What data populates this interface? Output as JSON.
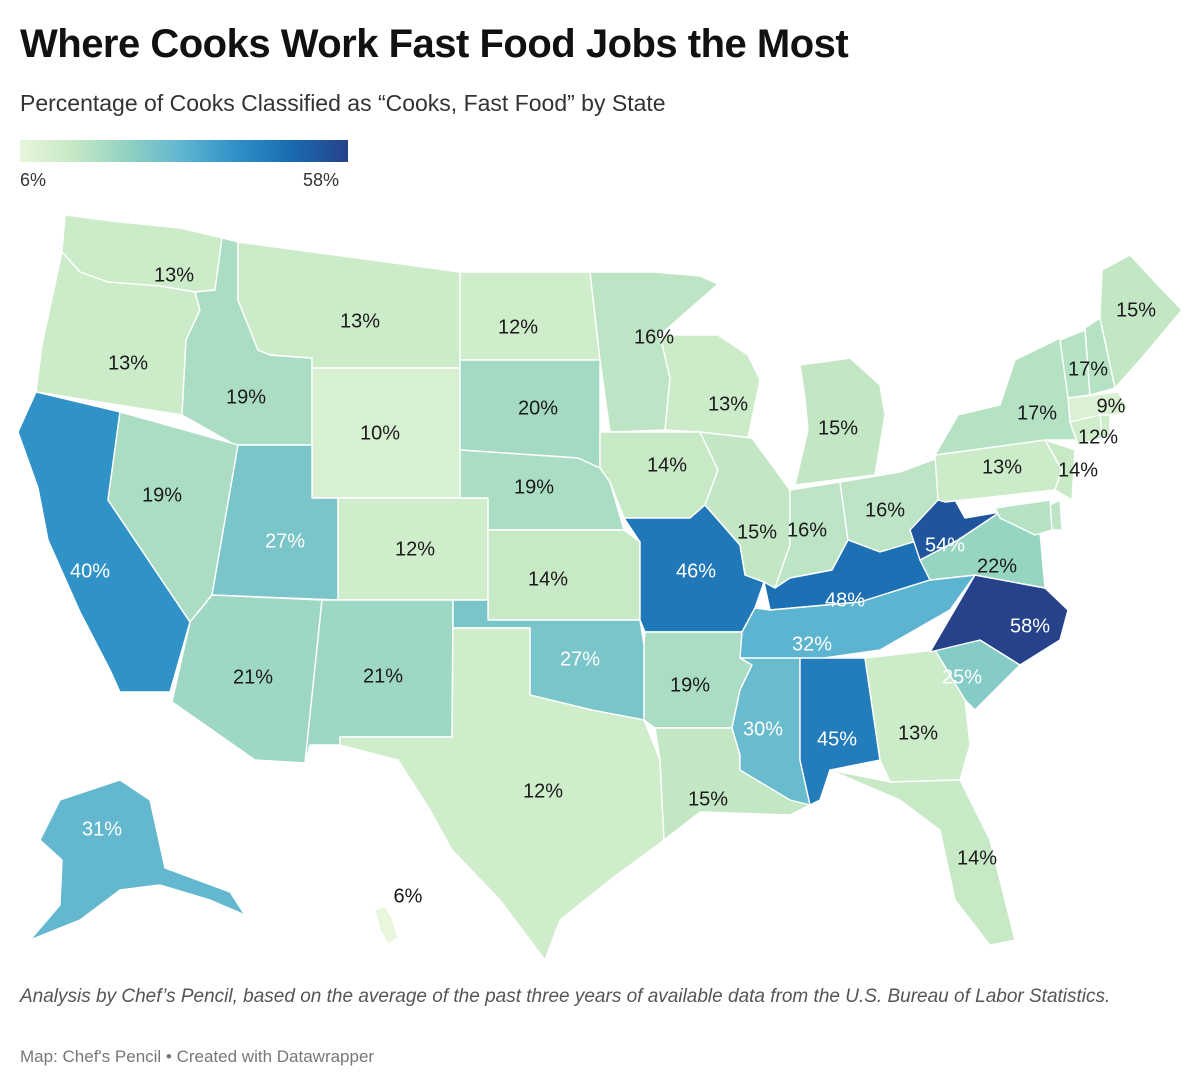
{
  "title": "Where Cooks Work Fast Food Jobs the Most",
  "subtitle": "Percentage of Cooks Classified as “Cooks, Fast Food” by State",
  "legend": {
    "min_label": "6%",
    "max_label": "58%",
    "min": 6,
    "max": 58,
    "colors": [
      "#e7f6dc",
      "#c5e8c4",
      "#8fd1c3",
      "#5db4d1",
      "#2d8fc7",
      "#1a6aaf",
      "#26428b"
    ]
  },
  "notes": "Analysis by Chef’s Pencil, based on the average of the past three years of available data from the U.S. Bureau of Labor Statistics.",
  "credit": "Map: Chef's Pencil • Created with Datawrapper",
  "map_data": {
    "type": "choropleth",
    "unit": "%",
    "states": [
      {
        "id": "WA",
        "value": 13,
        "label": "13%"
      },
      {
        "id": "OR",
        "value": 13,
        "label": "13%"
      },
      {
        "id": "CA",
        "value": 40,
        "label": "40%"
      },
      {
        "id": "ID",
        "value": 19,
        "label": "19%"
      },
      {
        "id": "NV",
        "value": 19,
        "label": "19%"
      },
      {
        "id": "MT",
        "value": 13,
        "label": "13%"
      },
      {
        "id": "WY",
        "value": 10,
        "label": "10%"
      },
      {
        "id": "UT",
        "value": 27,
        "label": "27%"
      },
      {
        "id": "AZ",
        "value": 21,
        "label": "21%"
      },
      {
        "id": "CO",
        "value": 12,
        "label": "12%"
      },
      {
        "id": "NM",
        "value": 21,
        "label": "21%"
      },
      {
        "id": "ND",
        "value": 12,
        "label": "12%"
      },
      {
        "id": "SD",
        "value": 20,
        "label": "20%"
      },
      {
        "id": "NE",
        "value": 19,
        "label": "19%"
      },
      {
        "id": "KS",
        "value": 14,
        "label": "14%"
      },
      {
        "id": "OK",
        "value": 27,
        "label": "27%"
      },
      {
        "id": "TX",
        "value": 12,
        "label": "12%"
      },
      {
        "id": "MN",
        "value": 16,
        "label": "16%"
      },
      {
        "id": "IA",
        "value": 14,
        "label": "14%"
      },
      {
        "id": "MO",
        "value": 46,
        "label": "46%"
      },
      {
        "id": "AR",
        "value": 19,
        "label": "19%"
      },
      {
        "id": "LA",
        "value": 15,
        "label": "15%"
      },
      {
        "id": "WI",
        "value": 13,
        "label": "13%"
      },
      {
        "id": "IL",
        "value": 15,
        "label": "15%"
      },
      {
        "id": "MI",
        "value": 15,
        "label": "15%"
      },
      {
        "id": "IN",
        "value": 16,
        "label": "16%"
      },
      {
        "id": "OH",
        "value": 16,
        "label": "16%"
      },
      {
        "id": "KY",
        "value": 48,
        "label": "48%"
      },
      {
        "id": "TN",
        "value": 32,
        "label": "32%"
      },
      {
        "id": "MS",
        "value": 30,
        "label": "30%"
      },
      {
        "id": "AL",
        "value": 45,
        "label": "45%"
      },
      {
        "id": "GA",
        "value": 13,
        "label": "13%"
      },
      {
        "id": "FL",
        "value": 14,
        "label": "14%"
      },
      {
        "id": "SC",
        "value": 25,
        "label": "25%"
      },
      {
        "id": "NC",
        "value": 58,
        "label": "58%"
      },
      {
        "id": "VA",
        "value": 22,
        "label": "22%"
      },
      {
        "id": "WV",
        "value": 54,
        "label": "54%"
      },
      {
        "id": "PA",
        "value": 13,
        "label": "13%"
      },
      {
        "id": "NY",
        "value": 17,
        "label": "17%"
      },
      {
        "id": "NJ",
        "value": 14,
        "label": "14%"
      },
      {
        "id": "CT",
        "value": 12,
        "label": "12%"
      },
      {
        "id": "MA",
        "value": 9,
        "label": "9%"
      },
      {
        "id": "VT",
        "value": 17,
        "label": "17%"
      },
      {
        "id": "NH",
        "value": 17
      },
      {
        "id": "ME",
        "value": 15,
        "label": "15%"
      },
      {
        "id": "RI",
        "value": 12
      },
      {
        "id": "DE",
        "value": 16
      },
      {
        "id": "MD",
        "value": 17
      },
      {
        "id": "AK",
        "value": 31,
        "label": "31%"
      },
      {
        "id": "HI",
        "value": 6,
        "label": "6%"
      }
    ]
  }
}
